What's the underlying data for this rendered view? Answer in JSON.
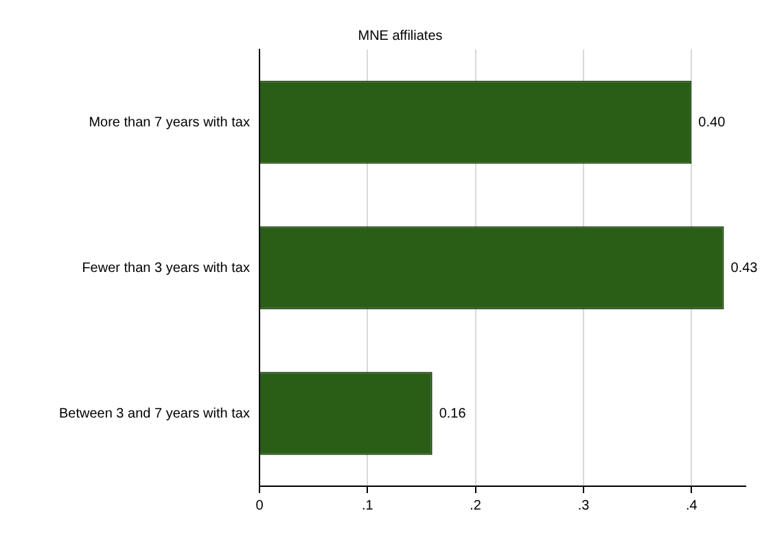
{
  "chart_data": {
    "type": "bar",
    "orientation": "horizontal",
    "title": "MNE affiliates",
    "categories": [
      "More than 7 years with tax",
      "Fewer than 3 years with tax",
      "Between 3 and 7 years with tax"
    ],
    "values": [
      0.4,
      0.43,
      0.16
    ],
    "value_labels": [
      "0.40",
      "0.43",
      "0.16"
    ],
    "color": "#2a5e17",
    "xlim": [
      0,
      0.45
    ],
    "xticks": [
      0,
      {
        "value": 0.1,
        "label": ".1"
      },
      {
        "value": 0.2,
        "label": ".2"
      },
      {
        "value": 0.3,
        "label": ".3"
      },
      {
        "value": 0.4,
        "label": ".4"
      }
    ],
    "grid": "x"
  }
}
